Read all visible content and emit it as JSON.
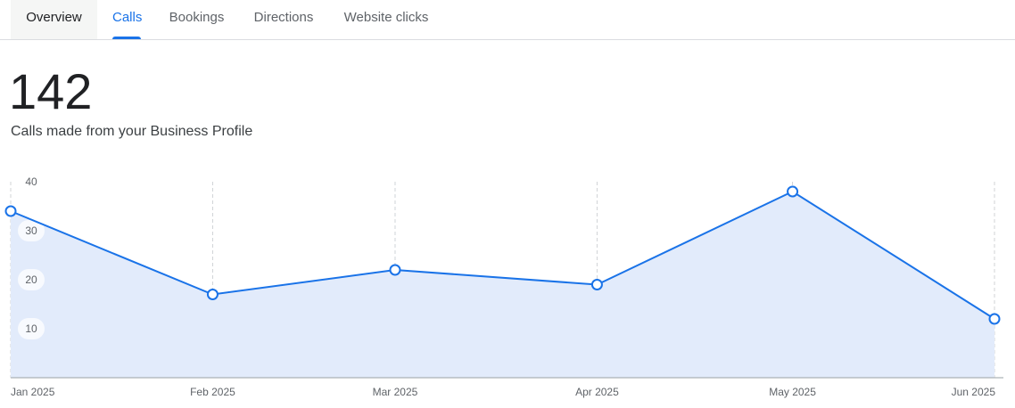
{
  "tabs": [
    {
      "label": "Overview",
      "state": "hover"
    },
    {
      "label": "Calls",
      "state": "active"
    },
    {
      "label": "Bookings",
      "state": ""
    },
    {
      "label": "Directions",
      "state": ""
    },
    {
      "label": "Website clicks",
      "state": ""
    }
  ],
  "summary": {
    "total": "142",
    "caption": "Calls made from your Business Profile"
  },
  "chart_data": {
    "type": "area",
    "x": [
      "2025-01-01",
      "2025-02-01",
      "2025-03-01",
      "2025-04-01",
      "2025-05-01",
      "2025-06-01"
    ],
    "x_tick_labels": [
      "Jan 2025",
      "Feb 2025",
      "Mar 2025",
      "Apr 2025",
      "May 2025",
      "Jun 2025"
    ],
    "values": [
      34,
      17,
      22,
      19,
      38,
      12
    ],
    "y_ticks": [
      10,
      20,
      30,
      40
    ],
    "ylim": [
      0,
      40
    ],
    "grid": "vertical dashed at x ticks",
    "line_color": "#1a73e8",
    "fill_color": "#e2ebfb"
  }
}
